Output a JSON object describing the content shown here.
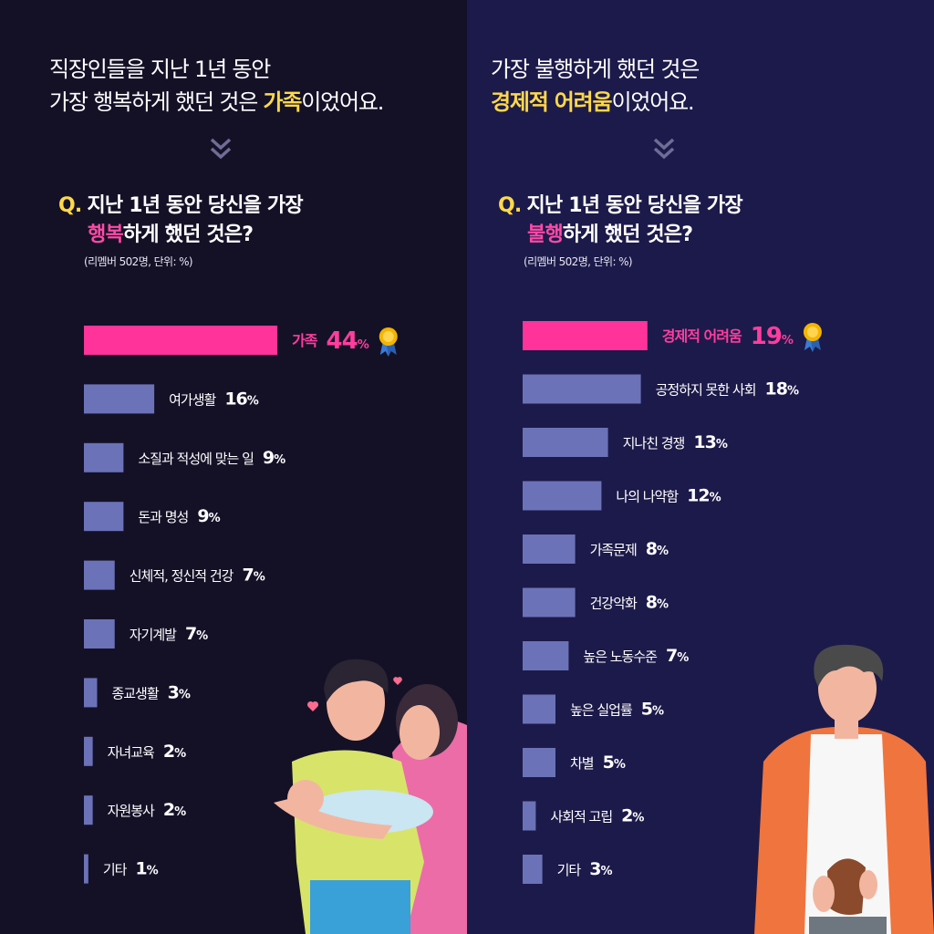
{
  "colors": {
    "left_background": "#141127",
    "right_background": "#1c1a4a",
    "highlight_yellow": "#ffd84a",
    "top_bar_pink": "#ff3399",
    "bar_periwinkle": "#6b72b8"
  },
  "left": {
    "headline_line1": "직장인들을 지난 1년 동안",
    "headline_line2_prefix": "가장 행복하게 했던 것은 ",
    "headline_highlight": "가족",
    "headline_line2_suffix": "이었어요.",
    "question_q": "Q.",
    "question_line1": "지난 1년 동안 당신을 가장",
    "question_highlight": "행복",
    "question_line2_suffix": "하게 했던 것은?",
    "note": "(리멤버 502명, 단위: %)"
  },
  "right": {
    "headline_line1": "가장 불행하게 했던 것은",
    "headline_highlight": "경제적 어려움",
    "headline_line2_suffix": "이었어요.",
    "question_q": "Q.",
    "question_line1": "지난 1년 동안 당신을 가장",
    "question_highlight": "불행",
    "question_line2_suffix": "하게 했던 것은?",
    "note": "(리멤버 502명, 단위: %)"
  },
  "chart_data": [
    {
      "type": "bar",
      "orientation": "horizontal",
      "unit": "%",
      "categories": [
        "가족",
        "여가생활",
        "소질과 적성에 맞는 일",
        "돈과 명성",
        "신체적, 정신적 건강",
        "자기계발",
        "종교생활",
        "자녀교육",
        "자원봉사",
        "기타"
      ],
      "values": [
        44,
        16,
        9,
        9,
        7,
        7,
        3,
        2,
        2,
        1
      ],
      "highlight_index": 0,
      "award_icon": "medal-icon"
    },
    {
      "type": "bar",
      "orientation": "horizontal",
      "unit": "%",
      "categories": [
        "경제적 어려움",
        "공정하지 못한 사회",
        "지나친 경쟁",
        "나의 나약함",
        "가족문제",
        "건강악화",
        "높은 노동수준",
        "높은 실업률",
        "차별",
        "사회적 고립",
        "기타"
      ],
      "values": [
        19,
        18,
        13,
        12,
        8,
        8,
        7,
        5,
        5,
        2,
        3
      ],
      "highlight_index": 0,
      "award_icon": "medal-icon"
    }
  ]
}
